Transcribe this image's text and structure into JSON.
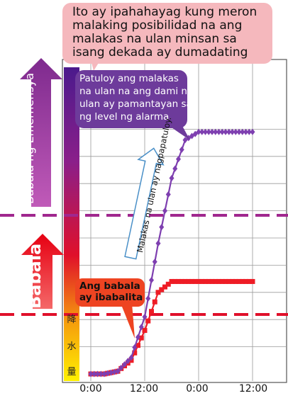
{
  "colors": {
    "warning_red": "#e60012",
    "warning_light": "#f04040",
    "emergency_purple": "#7e2a8e",
    "emergency_light": "#c05ab8",
    "callout_purple": "#6d3b9b",
    "callout_red": "#ee4422",
    "top_box": "#f5b8bd",
    "series_red": "#ee1c25",
    "series_purple": "#7e3fb0",
    "grid": "#9a9a9a"
  },
  "top_note": {
    "lines": [
      "Ito ay ipahahayag kung meron",
      "malaking posibilidad na ang",
      "malakas na ulan minsan sa",
      "isang dekada ay dumadating"
    ]
  },
  "purple_callout": {
    "lines": [
      "Patuloy ang malakas",
      "na ulan na ang dami ng",
      "ulan ay pamantayan sa",
      "ng level ng alarma"
    ]
  },
  "red_callout": {
    "lines": [
      "Ang babala",
      "ay ibabalita"
    ]
  },
  "left_arrows": {
    "emergency": "Babala ng Emerhensya",
    "warning": "Babala"
  },
  "rise_arrow": {
    "label": "Malakas na ulan ay nagpapatuloy."
  },
  "color_bar": {
    "chars": [
      "降",
      "水",
      "量"
    ]
  },
  "chart_data": {
    "type": "line",
    "x": [
      0,
      3,
      6,
      9,
      12,
      15,
      18,
      21,
      24,
      27,
      30,
      33,
      36
    ],
    "x_tick_labels": [
      "0:00",
      "12:00",
      "0:00",
      "12:00"
    ],
    "x_tick_values": [
      0,
      12,
      24,
      36
    ],
    "ylim": [
      0,
      100
    ],
    "grid": true,
    "thresholds": [
      {
        "name": "warning",
        "value": 22
      },
      {
        "name": "emergency",
        "value": 57
      }
    ],
    "series": [
      {
        "color": "#ee1c25",
        "marker": "square",
        "values": [
          0,
          0,
          1,
          5,
          16,
          30,
          34,
          34,
          34,
          34,
          34,
          34,
          34
        ]
      },
      {
        "color": "#7e3fb0",
        "marker": "diamond",
        "values": [
          0,
          0,
          1,
          6,
          21,
          48,
          72,
          86,
          89,
          89,
          89,
          89,
          89
        ]
      }
    ]
  }
}
